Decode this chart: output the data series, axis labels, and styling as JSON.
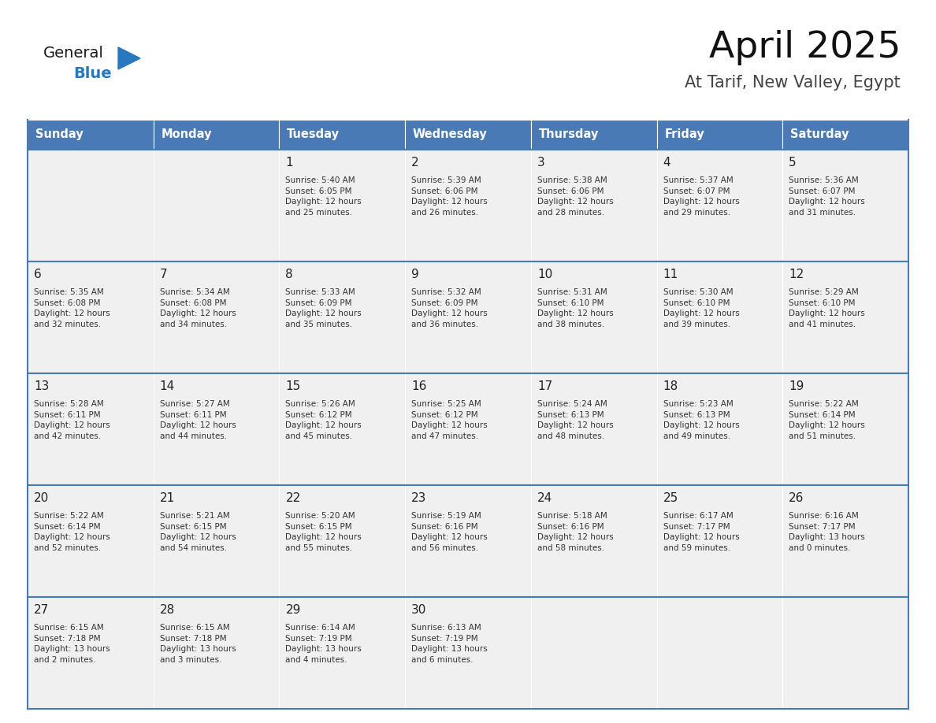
{
  "title": "April 2025",
  "subtitle": "At Tarif, New Valley, Egypt",
  "header_color": "#4a7ab5",
  "header_text_color": "#ffffff",
  "cell_bg_color": "#f0f0f0",
  "border_color": "#4a7ab5",
  "text_color": "#222222",
  "info_color": "#333333",
  "day_headers": [
    "Sunday",
    "Monday",
    "Tuesday",
    "Wednesday",
    "Thursday",
    "Friday",
    "Saturday"
  ],
  "weeks": [
    [
      {
        "day": "",
        "info": ""
      },
      {
        "day": "",
        "info": ""
      },
      {
        "day": "1",
        "info": "Sunrise: 5:40 AM\nSunset: 6:05 PM\nDaylight: 12 hours\nand 25 minutes."
      },
      {
        "day": "2",
        "info": "Sunrise: 5:39 AM\nSunset: 6:06 PM\nDaylight: 12 hours\nand 26 minutes."
      },
      {
        "day": "3",
        "info": "Sunrise: 5:38 AM\nSunset: 6:06 PM\nDaylight: 12 hours\nand 28 minutes."
      },
      {
        "day": "4",
        "info": "Sunrise: 5:37 AM\nSunset: 6:07 PM\nDaylight: 12 hours\nand 29 minutes."
      },
      {
        "day": "5",
        "info": "Sunrise: 5:36 AM\nSunset: 6:07 PM\nDaylight: 12 hours\nand 31 minutes."
      }
    ],
    [
      {
        "day": "6",
        "info": "Sunrise: 5:35 AM\nSunset: 6:08 PM\nDaylight: 12 hours\nand 32 minutes."
      },
      {
        "day": "7",
        "info": "Sunrise: 5:34 AM\nSunset: 6:08 PM\nDaylight: 12 hours\nand 34 minutes."
      },
      {
        "day": "8",
        "info": "Sunrise: 5:33 AM\nSunset: 6:09 PM\nDaylight: 12 hours\nand 35 minutes."
      },
      {
        "day": "9",
        "info": "Sunrise: 5:32 AM\nSunset: 6:09 PM\nDaylight: 12 hours\nand 36 minutes."
      },
      {
        "day": "10",
        "info": "Sunrise: 5:31 AM\nSunset: 6:10 PM\nDaylight: 12 hours\nand 38 minutes."
      },
      {
        "day": "11",
        "info": "Sunrise: 5:30 AM\nSunset: 6:10 PM\nDaylight: 12 hours\nand 39 minutes."
      },
      {
        "day": "12",
        "info": "Sunrise: 5:29 AM\nSunset: 6:10 PM\nDaylight: 12 hours\nand 41 minutes."
      }
    ],
    [
      {
        "day": "13",
        "info": "Sunrise: 5:28 AM\nSunset: 6:11 PM\nDaylight: 12 hours\nand 42 minutes."
      },
      {
        "day": "14",
        "info": "Sunrise: 5:27 AM\nSunset: 6:11 PM\nDaylight: 12 hours\nand 44 minutes."
      },
      {
        "day": "15",
        "info": "Sunrise: 5:26 AM\nSunset: 6:12 PM\nDaylight: 12 hours\nand 45 minutes."
      },
      {
        "day": "16",
        "info": "Sunrise: 5:25 AM\nSunset: 6:12 PM\nDaylight: 12 hours\nand 47 minutes."
      },
      {
        "day": "17",
        "info": "Sunrise: 5:24 AM\nSunset: 6:13 PM\nDaylight: 12 hours\nand 48 minutes."
      },
      {
        "day": "18",
        "info": "Sunrise: 5:23 AM\nSunset: 6:13 PM\nDaylight: 12 hours\nand 49 minutes."
      },
      {
        "day": "19",
        "info": "Sunrise: 5:22 AM\nSunset: 6:14 PM\nDaylight: 12 hours\nand 51 minutes."
      }
    ],
    [
      {
        "day": "20",
        "info": "Sunrise: 5:22 AM\nSunset: 6:14 PM\nDaylight: 12 hours\nand 52 minutes."
      },
      {
        "day": "21",
        "info": "Sunrise: 5:21 AM\nSunset: 6:15 PM\nDaylight: 12 hours\nand 54 minutes."
      },
      {
        "day": "22",
        "info": "Sunrise: 5:20 AM\nSunset: 6:15 PM\nDaylight: 12 hours\nand 55 minutes."
      },
      {
        "day": "23",
        "info": "Sunrise: 5:19 AM\nSunset: 6:16 PM\nDaylight: 12 hours\nand 56 minutes."
      },
      {
        "day": "24",
        "info": "Sunrise: 5:18 AM\nSunset: 6:16 PM\nDaylight: 12 hours\nand 58 minutes."
      },
      {
        "day": "25",
        "info": "Sunrise: 6:17 AM\nSunset: 7:17 PM\nDaylight: 12 hours\nand 59 minutes."
      },
      {
        "day": "26",
        "info": "Sunrise: 6:16 AM\nSunset: 7:17 PM\nDaylight: 13 hours\nand 0 minutes."
      }
    ],
    [
      {
        "day": "27",
        "info": "Sunrise: 6:15 AM\nSunset: 7:18 PM\nDaylight: 13 hours\nand 2 minutes."
      },
      {
        "day": "28",
        "info": "Sunrise: 6:15 AM\nSunset: 7:18 PM\nDaylight: 13 hours\nand 3 minutes."
      },
      {
        "day": "29",
        "info": "Sunrise: 6:14 AM\nSunset: 7:19 PM\nDaylight: 13 hours\nand 4 minutes."
      },
      {
        "day": "30",
        "info": "Sunrise: 6:13 AM\nSunset: 7:19 PM\nDaylight: 13 hours\nand 6 minutes."
      },
      {
        "day": "",
        "info": ""
      },
      {
        "day": "",
        "info": ""
      },
      {
        "day": "",
        "info": ""
      }
    ]
  ],
  "logo_color_general": "#1a1a1a",
  "logo_color_blue": "#2878c0",
  "logo_triangle_color": "#2878c0"
}
